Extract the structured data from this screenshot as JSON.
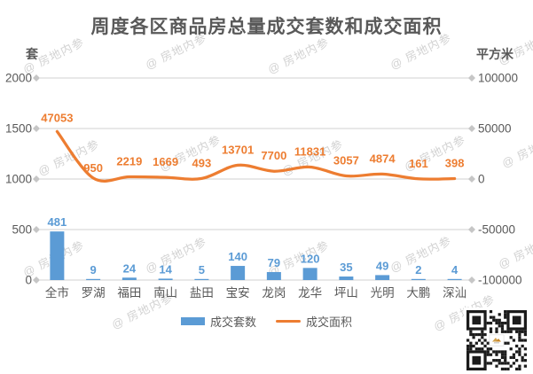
{
  "watermark": {
    "text": "@ 房地内参"
  },
  "chart_data": {
    "type": "combo",
    "title": "周度各区商品房总量成交套数和成交面积",
    "categories": [
      "全市",
      "罗湖",
      "福田",
      "南山",
      "盐田",
      "宝安",
      "龙岗",
      "龙华",
      "坪山",
      "光明",
      "大鹏",
      "深汕"
    ],
    "series": [
      {
        "name": "成交套数",
        "type": "bar",
        "axis": "left",
        "color": "#5B9BD5",
        "values": [
          481,
          9,
          24,
          14,
          5,
          140,
          79,
          120,
          35,
          49,
          2,
          4
        ]
      },
      {
        "name": "成交面积",
        "type": "line",
        "axis": "right",
        "color": "#ED7D31",
        "values": [
          47053,
          950,
          2219,
          1669,
          493,
          13701,
          7700,
          11831,
          3057,
          4874,
          161,
          398
        ]
      }
    ],
    "left_axis": {
      "title": "套",
      "min": 0,
      "max": 2000,
      "ticks": [
        2000,
        1500,
        1000,
        500,
        0
      ]
    },
    "right_axis": {
      "title": "平方米",
      "min": -100000,
      "max": 100000,
      "ticks": [
        100000,
        50000,
        0,
        -50000,
        -100000
      ]
    },
    "legend_position": "bottom",
    "grid": true,
    "colors": {
      "grid_line": "#D9D9D9",
      "tick_marker": "#C6C6C6",
      "text": "#595959"
    }
  }
}
